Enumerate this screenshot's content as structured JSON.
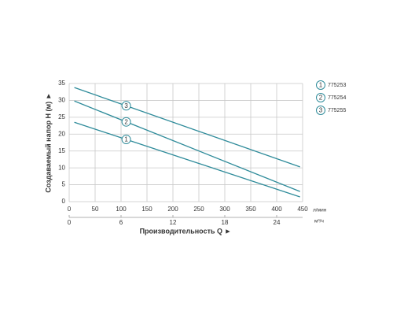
{
  "chart_data": {
    "type": "line",
    "ylabel": "Создаваемый напор Н (м) ►",
    "xlabel": "Производительность Q ►",
    "x_unit": "л/мин",
    "x2_unit": "м³/ч",
    "xlim": [
      0,
      450
    ],
    "xticks": [
      0,
      50,
      100,
      150,
      200,
      250,
      300,
      350,
      400,
      450
    ],
    "x2lim": [
      0,
      27
    ],
    "x2ticks": [
      0,
      6,
      12,
      18,
      24
    ],
    "ylim": [
      0,
      35
    ],
    "yticks": [
      0,
      5,
      10,
      15,
      20,
      25,
      30,
      35
    ],
    "grid": true,
    "series": [
      {
        "label": "1",
        "name": "775253",
        "color": "#2e8b9a",
        "x": [
          10,
          445
        ],
        "values": [
          23.5,
          1.4
        ]
      },
      {
        "label": "2",
        "name": "775254",
        "color": "#2e8b9a",
        "x": [
          10,
          445
        ],
        "values": [
          29.8,
          3
        ]
      },
      {
        "label": "3",
        "name": "775255",
        "color": "#2e8b9a",
        "x": [
          10,
          445
        ],
        "values": [
          33.8,
          10.3
        ]
      }
    ]
  }
}
